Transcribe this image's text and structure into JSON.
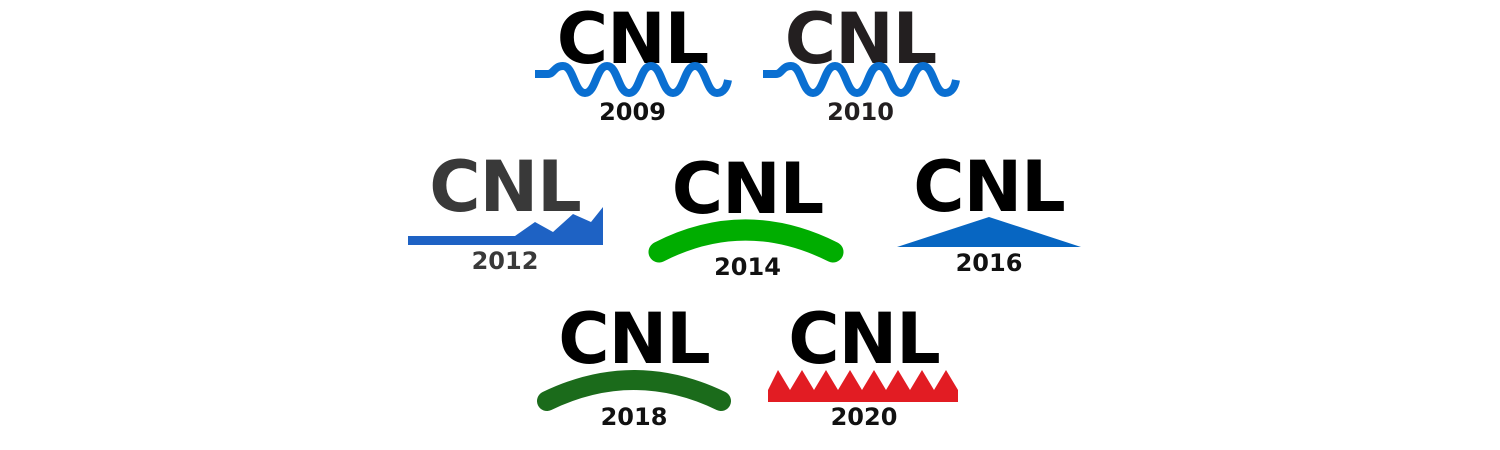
{
  "logos": [
    {
      "wordmark": "CNL",
      "year": "2009",
      "accent": "#0a6fd1",
      "emblem": "wave-line"
    },
    {
      "wordmark": "CNL",
      "year": "2010",
      "accent": "#0a6fd1",
      "emblem": "wave-line"
    },
    {
      "wordmark": "CNL",
      "year": "2012",
      "accent": "#1e62c4",
      "emblem": "rising-chart-line"
    },
    {
      "wordmark": "CNL",
      "year": "2014",
      "accent": "#00ad00",
      "emblem": "arc-swoosh"
    },
    {
      "wordmark": "CNL",
      "year": "2016",
      "accent": "#0766c2",
      "emblem": "triangle-roof"
    },
    {
      "wordmark": "CNL",
      "year": "2018",
      "accent": "#1b6b1b",
      "emblem": "arc-swoosh"
    },
    {
      "wordmark": "CNL",
      "year": "2020",
      "accent": "#e21c23",
      "emblem": "sawtooth-crown"
    }
  ]
}
